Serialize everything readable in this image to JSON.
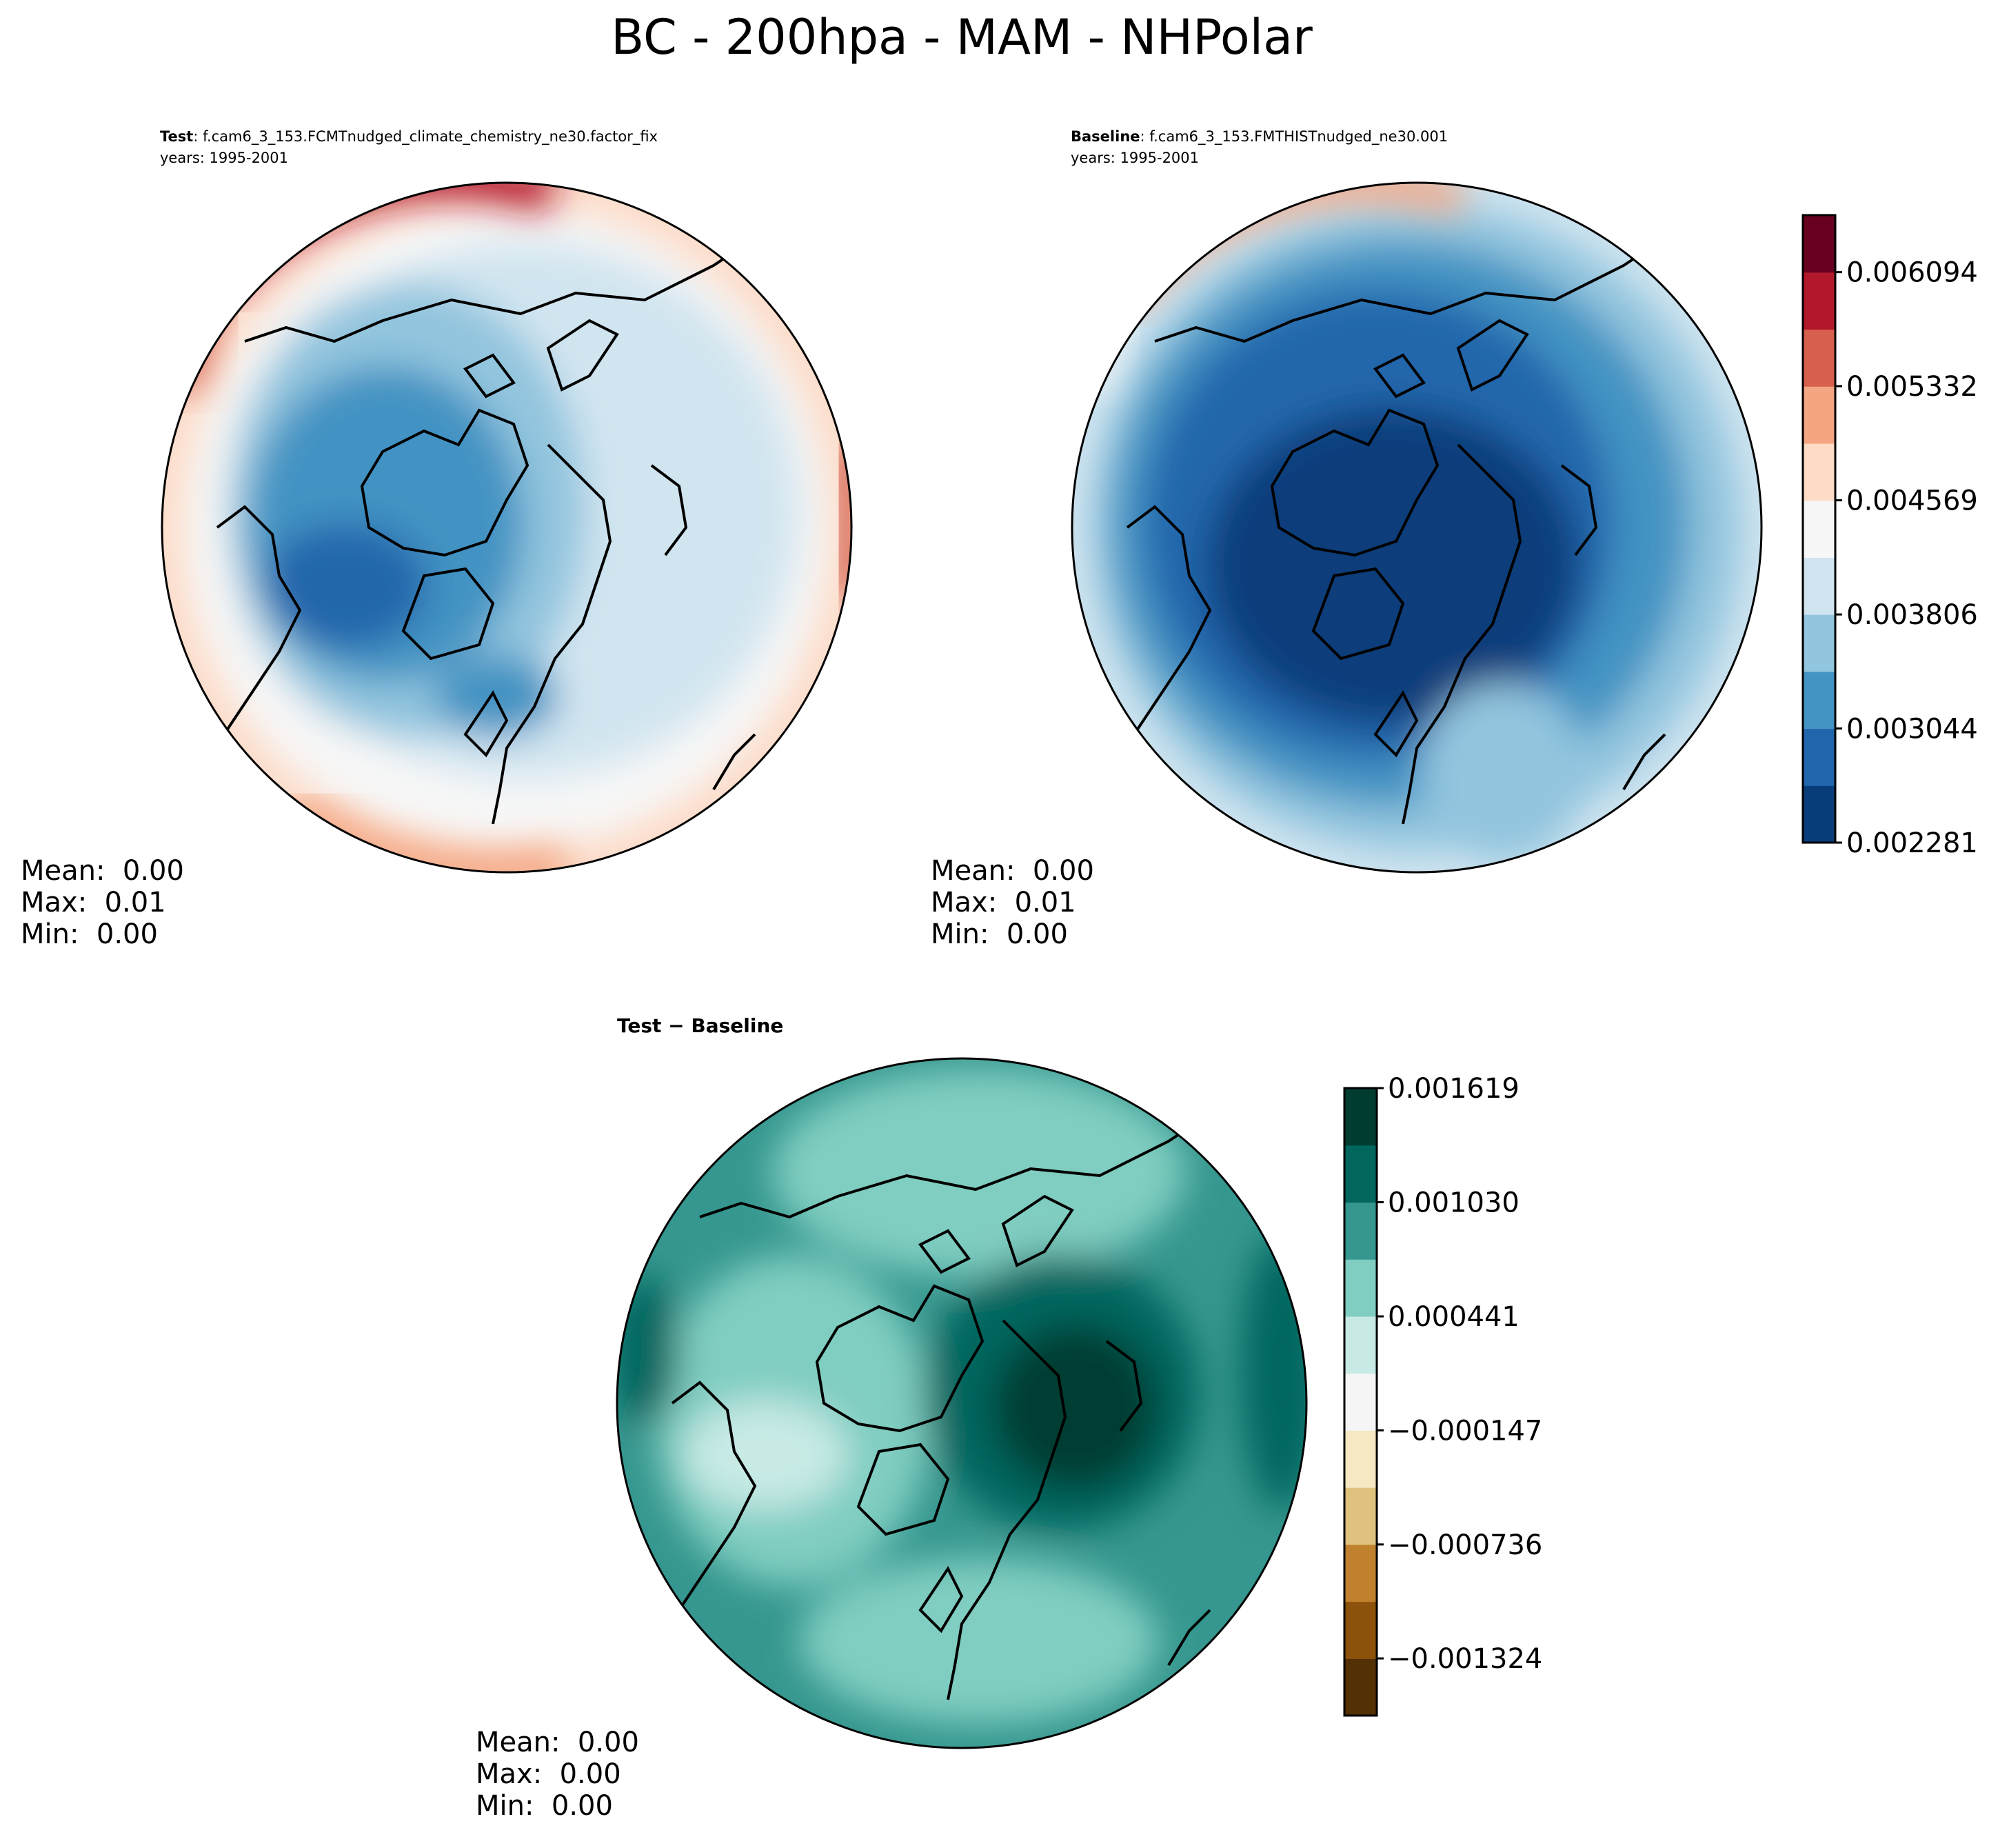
{
  "figure": {
    "title": "BC - 200hpa - MAM - NHPolar"
  },
  "chart_data": [
    {
      "type": "heatmap",
      "projection": "north-polar-stereographic",
      "panel": "test",
      "title_bold": "Test",
      "title_rest": ": f.cam6_3_153.FCMTnudged_climate_chemistry_ne30.factor_fix",
      "years": "years: 1995-2001",
      "stats": [
        "Mean:  0.00",
        "Max:  0.01",
        "Min:  0.00"
      ],
      "colormap": "RdBu_r",
      "level_range": [
        0.002281,
        0.006475
      ],
      "pattern": "high (red) values along the low-latitude rim, strongest over the North Pacific and Europe; lowest (blue) over North America and the Canadian Arctic"
    },
    {
      "type": "heatmap",
      "projection": "north-polar-stereographic",
      "panel": "baseline",
      "title_bold": "Baseline",
      "title_rest": ": f.cam6_3_153.FMTHISTnudged_ne30.001",
      "years": "years: 1995-2001",
      "stats": [
        "Mean:  0.00",
        "Max:  0.01",
        "Min:  0.00"
      ],
      "colormap": "RdBu_r",
      "level_range": [
        0.002281,
        0.006475
      ],
      "pattern": "mostly blue; minimum over the polar cap / Canadian Arctic, weak red band along the Pacific rim",
      "colorbar": {
        "ticks": [
          "0.006094",
          "0.005332",
          "0.004569",
          "0.003806",
          "0.003044",
          "0.002281"
        ],
        "tick_values": [
          0.006094,
          0.005332,
          0.004569,
          0.003806,
          0.003044,
          0.002281
        ],
        "colors": [
          "#083d7a",
          "#2166ac",
          "#4393c3",
          "#92c5de",
          "#d1e5f0",
          "#f7f7f7",
          "#fddbc7",
          "#f4a582",
          "#d6604d",
          "#b2182b",
          "#67001f"
        ]
      }
    },
    {
      "type": "heatmap",
      "projection": "north-polar-stereographic",
      "panel": "difference",
      "title": "Test − Baseline",
      "stats": [
        "Mean:  0.00",
        "Max:  0.00",
        "Min:  0.00"
      ],
      "colormap": "BrBG",
      "level_range": [
        -0.001619,
        0.001619
      ],
      "pattern": "positive everywhere; largest (dark green) over the Arctic Ocean / Siberia and the Pacific rim, smallest (pale) over Canada",
      "colorbar": {
        "ticks": [
          "0.001619",
          "0.001030",
          "0.000441",
          "−0.000147",
          "−0.000736",
          "−0.001324"
        ],
        "tick_values": [
          0.001619,
          0.00103,
          0.000441,
          -0.000147,
          -0.000736,
          -0.001324
        ],
        "colors": [
          "#543005",
          "#8c510a",
          "#bf812d",
          "#dfc27d",
          "#f6e8c3",
          "#f5f5f5",
          "#c7eae5",
          "#80cdc1",
          "#35978f",
          "#01665e",
          "#003c30"
        ]
      }
    }
  ]
}
